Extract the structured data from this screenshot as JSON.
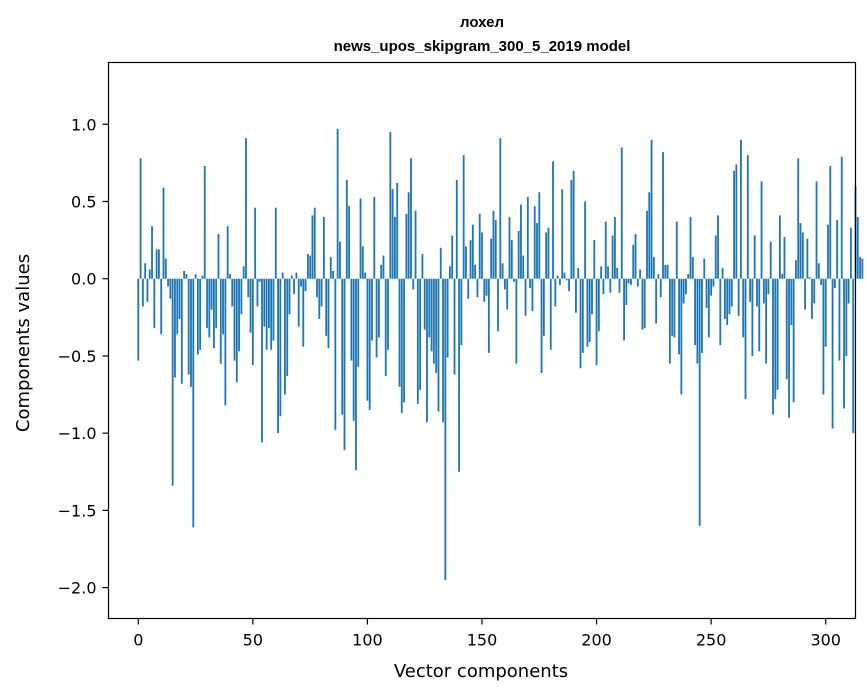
{
  "chart_data": {
    "type": "bar",
    "title": "лохел",
    "subtitle": "news_upos_skipgram_300_5_2019 model",
    "xlabel": "Vector components",
    "ylabel": "Components values",
    "xlim": [
      -13,
      313
    ],
    "ylim": [
      -2.2,
      1.4
    ],
    "xticks": [
      0,
      50,
      100,
      150,
      200,
      250,
      300
    ],
    "xtick_labels": [
      "0",
      "50",
      "100",
      "150",
      "200",
      "250",
      "300"
    ],
    "yticks": [
      -2.0,
      -1.5,
      -1.0,
      -0.5,
      0.0,
      0.5,
      1.0
    ],
    "ytick_labels": [
      "−2.0",
      "−1.5",
      "−1.0",
      "−0.5",
      "0.0",
      "0.5",
      "1.0"
    ],
    "bar_color": "#1f77b4",
    "grid": false,
    "x_start": 0,
    "values": [
      -0.53,
      0.78,
      -0.18,
      0.1,
      -0.15,
      0.06,
      0.34,
      -0.32,
      0.19,
      0.19,
      -0.36,
      0.59,
      0.13,
      -0.05,
      -0.13,
      -1.34,
      -0.64,
      -0.36,
      -0.26,
      -0.68,
      0.05,
      0.03,
      -0.62,
      -0.7,
      -1.61,
      0.03,
      -0.49,
      -0.46,
      0.02,
      0.73,
      -0.32,
      -0.38,
      -0.2,
      -0.45,
      -0.32,
      0.29,
      -0.55,
      -0.36,
      -0.82,
      0.34,
      0.03,
      -0.18,
      -0.53,
      -0.67,
      -0.47,
      -0.23,
      0.08,
      0.91,
      -0.12,
      -0.35,
      -0.56,
      0.46,
      -0.18,
      -0.02,
      -1.06,
      -0.31,
      -0.46,
      -0.32,
      -0.46,
      -0.4,
      0.46,
      -1.0,
      -0.89,
      0.04,
      -0.75,
      -0.63,
      -0.23,
      0.02,
      -0.1,
      0.04,
      -0.31,
      -0.05,
      -0.44,
      -0.08,
      0.16,
      0.15,
      0.41,
      0.46,
      -0.12,
      -0.26,
      -0.18,
      0.4,
      -0.37,
      -0.45,
      0.14,
      0.05,
      -0.98,
      0.97,
      0.24,
      -0.88,
      -1.11,
      0.64,
      0.47,
      -0.53,
      -0.92,
      -1.24,
      -0.57,
      0.52,
      0.21,
      0.04,
      -0.79,
      -0.85,
      -0.4,
      0.53,
      -0.51,
      -0.38,
      0.09,
      0.15,
      -0.63,
      -0.46,
      0.95,
      0.58,
      0.4,
      0.62,
      -0.7,
      -0.87,
      -0.8,
      0.42,
      0.56,
      0.78,
      -0.07,
      0.44,
      -0.81,
      -0.72,
      0.16,
      -0.33,
      -0.93,
      -0.38,
      -0.47,
      -0.55,
      -0.61,
      -0.86,
      0.2,
      -0.93,
      -1.95,
      -0.51,
      0.08,
      0.28,
      -0.62,
      0.64,
      -1.25,
      -0.43,
      0.8,
      0.21,
      -0.13,
      0.25,
      0.35,
      0.09,
      -0.12,
      0.42,
      0.3,
      -0.15,
      -0.11,
      -0.48,
      0.26,
      0.44,
      0.38,
      -0.34,
      0.91,
      0.1,
      -0.07,
      -0.2,
      0.4,
      0.25,
      -0.02,
      -0.55,
      0.31,
      0.48,
      0.15,
      -0.24,
      0.53,
      -0.06,
      -0.21,
      0.47,
      0.36,
      0.56,
      -0.61,
      -0.37,
      0.3,
      0.33,
      -0.46,
      0.76,
      -0.18,
      0.02,
      -0.04,
      0.58,
      0.04,
      -0.01,
      -0.08,
      0.64,
      0.7,
      -0.22,
      0.07,
      -0.58,
      -0.48,
      0.5,
      -0.44,
      -0.41,
      -0.23,
      0.25,
      -0.56,
      -0.34,
      0.08,
      -0.1,
      0.37,
      0.08,
      -0.09,
      0.28,
      0.4,
      0.07,
      -0.09,
      0.85,
      -0.4,
      -0.17,
      -0.03,
      -0.04,
      0.22,
      0.29,
      -0.05,
      0.06,
      -0.33,
      -0.32,
      0.44,
      0.56,
      0.9,
      0.14,
      -0.29,
      0.03,
      -0.12,
      0.82,
      0.09,
      0.09,
      -0.55,
      -0.37,
      -0.38,
      0.37,
      -0.49,
      -0.75,
      -0.16,
      -0.1,
      0.03,
      0.4,
      0.14,
      -0.43,
      -0.55,
      -1.6,
      -0.48,
      0.13,
      -0.19,
      -0.38,
      -0.11,
      -0.05,
      0.28,
      0.41,
      -0.43,
      0.07,
      -0.26,
      -0.3,
      -0.23,
      -0.18,
      0.7,
      0.74,
      -0.24,
      0.9,
      -0.38,
      -0.78,
      0.8,
      -0.15,
      -0.5,
      0.28,
      -0.18,
      -0.47,
      0.63,
      -0.16,
      -0.55,
      -0.1,
      0.24,
      -0.88,
      -0.78,
      -0.72,
      0.41,
      0.03,
      0.27,
      -0.65,
      -0.9,
      -0.3,
      -0.8,
      0.12,
      0.78,
      0.36,
      0.3,
      -0.2,
      0.26,
      0.01,
      -0.26,
      -0.16,
      0.63,
      0.1,
      -0.04,
      -0.75,
      -0.44,
      0.35,
      0.73,
      -0.97,
      -0.06,
      0.38,
      -0.53,
      0.79,
      -0.84,
      -0.5,
      -0.16,
      0.33,
      -1.0,
      0.6,
      0.4,
      0.14,
      0.13
    ]
  }
}
